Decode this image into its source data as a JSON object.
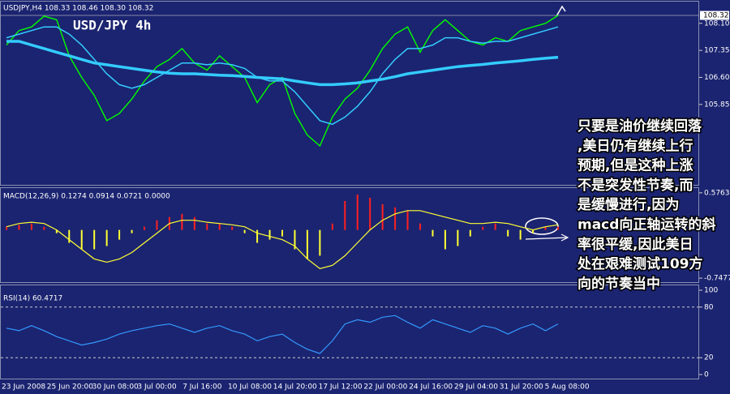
{
  "header": "USDJPY,H4 108.33 108.46 108.30 108.32",
  "title": "USD/JPY 4h",
  "annotation": [
    "只要是油价继续回落",
    ",美日仍有继续上行",
    "预期,但是这种上涨",
    "不是突发性节奏,而",
    "是缓慢进行,因为",
    "macd向正轴运转的斜",
    "率很平缓,因此美日",
    "处在艰难测试109方",
    "向的节奏当中"
  ],
  "time_labels": [
    "23 Jun 2008",
    "25 Jun 20:00",
    "30 Jun 08:00",
    "3 Jul 00:00",
    "7 Jul 16:00",
    "10 Jul 08:00",
    "14 Jul 20:00",
    "17 Jul 12:00",
    "22 Jul 00:00",
    "24 Jul 16:00",
    "29 Jul 04:00",
    "31 Jul 20:00",
    "5 Aug 08:00"
  ],
  "chart_data": [
    {
      "type": "line",
      "last_price": 108.32,
      "ylim": [
        103.62,
        108.68
      ],
      "yticks": [
        {
          "value": 108.1,
          "label": "108.10"
        },
        107.35,
        {
          "value": 106.6,
          "label": "106.60"
        },
        105.85
      ],
      "series": [
        {
          "type": "line",
          "color": "#00ff00",
          "width": 1.4,
          "values": [
            107.5,
            107.9,
            108.0,
            108.3,
            108.2,
            107.2,
            106.6,
            106.1,
            105.4,
            105.6,
            106.0,
            106.5,
            106.9,
            107.1,
            107.4,
            107.0,
            106.8,
            107.2,
            106.9,
            106.6,
            105.9,
            106.4,
            106.6,
            105.6,
            105.0,
            104.7,
            105.5,
            106.0,
            106.3,
            106.8,
            107.4,
            107.8,
            108.0,
            107.3,
            107.9,
            108.2,
            107.9,
            107.6,
            107.5,
            107.7,
            107.6,
            107.9,
            108.0,
            108.1,
            108.32
          ]
        },
        {
          "type": "line",
          "color": "#33ccff",
          "width": 1.5,
          "values": [
            107.7,
            107.8,
            107.9,
            108.0,
            108.0,
            107.8,
            107.5,
            107.1,
            106.7,
            106.4,
            106.3,
            106.4,
            106.6,
            106.8,
            107.0,
            107.0,
            106.95,
            107.0,
            106.95,
            106.85,
            106.6,
            106.5,
            106.5,
            106.2,
            105.8,
            105.4,
            105.3,
            105.5,
            105.8,
            106.2,
            106.7,
            107.1,
            107.4,
            107.4,
            107.5,
            107.7,
            107.7,
            107.6,
            107.55,
            107.6,
            107.6,
            107.7,
            107.8,
            107.9,
            108.0
          ]
        },
        {
          "type": "line",
          "color": "#33ccff",
          "width": 3.5,
          "values": [
            107.6,
            107.6,
            107.5,
            107.4,
            107.3,
            107.2,
            107.1,
            107.0,
            106.95,
            106.9,
            106.85,
            106.8,
            106.75,
            106.72,
            106.7,
            106.7,
            106.68,
            106.66,
            106.65,
            106.63,
            106.6,
            106.58,
            106.56,
            106.5,
            106.45,
            106.4,
            106.4,
            106.42,
            106.45,
            106.5,
            106.55,
            106.62,
            106.7,
            106.75,
            106.8,
            106.85,
            106.9,
            106.93,
            106.96,
            107.0,
            107.03,
            107.06,
            107.1,
            107.13,
            107.16
          ]
        }
      ]
    },
    {
      "type": "bar",
      "label": "MACD(12,26,9) 0.1274 0.0914 0.0721 0.0000",
      "ylim": [
        -0.81,
        0.65
      ],
      "yticks": [
        0.5763,
        -0.7477
      ],
      "series": [
        {
          "type": "bar",
          "color": "#ff2020",
          "negative_color": "#ffff33",
          "values": [
            0.05,
            0.08,
            0.1,
            0.05,
            -0.05,
            -0.2,
            -0.3,
            -0.3,
            -0.25,
            -0.15,
            -0.05,
            0.05,
            0.15,
            0.2,
            0.25,
            0.2,
            0.1,
            0.1,
            0.05,
            -0.05,
            -0.2,
            -0.15,
            -0.1,
            -0.3,
            -0.45,
            -0.4,
            0.1,
            0.45,
            0.55,
            0.5,
            0.4,
            0.35,
            0.3,
            0.1,
            -0.1,
            -0.3,
            -0.25,
            -0.1,
            0.05,
            0.1,
            -0.1,
            -0.15,
            -0.05,
            0.05,
            0.05
          ]
        },
        {
          "type": "line",
          "color": "#ffff33",
          "width": 1.2,
          "values": [
            0.05,
            0.1,
            0.12,
            0.1,
            0.0,
            -0.15,
            -0.3,
            -0.45,
            -0.5,
            -0.45,
            -0.35,
            -0.2,
            -0.05,
            0.1,
            0.15,
            0.15,
            0.12,
            0.1,
            0.08,
            0.05,
            -0.05,
            -0.1,
            -0.15,
            -0.25,
            -0.45,
            -0.6,
            -0.55,
            -0.4,
            -0.2,
            0.0,
            0.15,
            0.25,
            0.3,
            0.3,
            0.25,
            0.2,
            0.15,
            0.1,
            0.1,
            0.12,
            0.1,
            0.05,
            0.0,
            0.05,
            0.08
          ]
        }
      ]
    },
    {
      "type": "line",
      "label": "RSI(14) 60.4717",
      "ylim": [
        0,
        100
      ],
      "yticks": [
        100,
        80,
        20,
        0
      ],
      "levels": [
        80,
        20
      ],
      "series": [
        {
          "type": "line",
          "color": "#3399ff",
          "width": 1.2,
          "values": [
            55,
            52,
            58,
            52,
            45,
            40,
            35,
            38,
            42,
            48,
            52,
            55,
            58,
            60,
            55,
            50,
            55,
            58,
            52,
            48,
            40,
            45,
            48,
            38,
            30,
            25,
            40,
            60,
            65,
            62,
            68,
            70,
            62,
            55,
            65,
            60,
            55,
            50,
            58,
            55,
            48,
            55,
            60,
            52,
            60
          ]
        }
      ]
    }
  ]
}
